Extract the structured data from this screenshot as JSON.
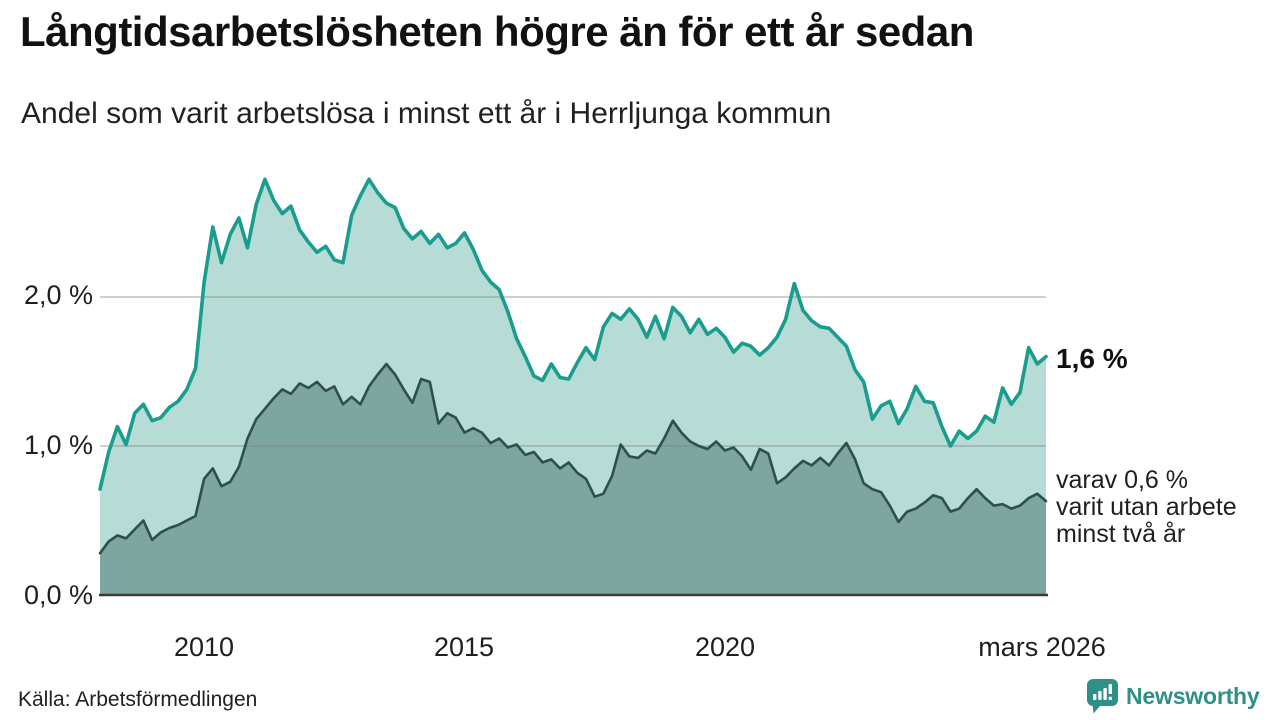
{
  "header": {
    "title": "Långtidsarbetslösheten högre än för ett år sedan",
    "subtitle": "Andel som varit arbetslösa i minst ett år i Herrljunga kommun"
  },
  "chart_data": {
    "type": "area",
    "title": "Långtidsarbetslösheten högre än för ett år sedan",
    "subtitle": "Andel som varit arbetslösa i minst ett år i Herrljunga kommun",
    "unit": "%",
    "x_start": 2008.0,
    "x_end": 2026.17,
    "ylim": [
      0,
      2.85
    ],
    "grid": "horizontal",
    "grid_color": "#828282",
    "axis_color": "#3a3a3a",
    "y_ticks": [
      {
        "label": "0,0 %",
        "value": 0
      },
      {
        "label": "1,0 %",
        "value": 1
      },
      {
        "label": "2,0 %",
        "value": 2
      }
    ],
    "x_ticks": [
      {
        "label": "2010",
        "value": 2010
      },
      {
        "label": "2015",
        "value": 2015
      },
      {
        "label": "2020",
        "value": 2020
      },
      {
        "label": "mars 2026",
        "value": 2026.17
      }
    ],
    "series": [
      {
        "name": "Arbetslösa minst ett år",
        "line_color": "#1a9c8e",
        "fill_color": "#b7dcd6",
        "end_value_pct": 1.6,
        "values": [
          0.71,
          0.96,
          1.13,
          1.01,
          1.22,
          1.28,
          1.17,
          1.19,
          1.26,
          1.3,
          1.38,
          1.52,
          2.1,
          2.47,
          2.23,
          2.42,
          2.53,
          2.33,
          2.62,
          2.79,
          2.65,
          2.56,
          2.61,
          2.45,
          2.37,
          2.3,
          2.34,
          2.25,
          2.23,
          2.55,
          2.68,
          2.79,
          2.7,
          2.63,
          2.6,
          2.46,
          2.39,
          2.44,
          2.36,
          2.42,
          2.33,
          2.36,
          2.43,
          2.32,
          2.18,
          2.1,
          2.05,
          1.9,
          1.72,
          1.6,
          1.47,
          1.44,
          1.55,
          1.46,
          1.45,
          1.56,
          1.66,
          1.58,
          1.8,
          1.89,
          1.85,
          1.92,
          1.85,
          1.73,
          1.87,
          1.72,
          1.93,
          1.87,
          1.76,
          1.85,
          1.75,
          1.79,
          1.73,
          1.63,
          1.69,
          1.67,
          1.61,
          1.66,
          1.73,
          1.85,
          2.09,
          1.91,
          1.84,
          1.8,
          1.79,
          1.73,
          1.67,
          1.51,
          1.43,
          1.18,
          1.27,
          1.3,
          1.15,
          1.25,
          1.4,
          1.3,
          1.29,
          1.13,
          1.0,
          1.1,
          1.05,
          1.1,
          1.2,
          1.16,
          1.39,
          1.28,
          1.36,
          1.66,
          1.55,
          1.6
        ]
      },
      {
        "name": "Utan arbete minst två år",
        "line_color": "#2e4f4b",
        "fill_color": "#7ca69f",
        "end_value_pct": 0.6,
        "values": [
          0.28,
          0.36,
          0.4,
          0.38,
          0.44,
          0.5,
          0.37,
          0.42,
          0.45,
          0.47,
          0.5,
          0.53,
          0.78,
          0.85,
          0.73,
          0.76,
          0.86,
          1.05,
          1.18,
          1.25,
          1.32,
          1.38,
          1.35,
          1.42,
          1.39,
          1.43,
          1.37,
          1.4,
          1.28,
          1.33,
          1.28,
          1.4,
          1.48,
          1.55,
          1.48,
          1.38,
          1.29,
          1.45,
          1.43,
          1.15,
          1.22,
          1.19,
          1.09,
          1.12,
          1.09,
          1.02,
          1.05,
          0.99,
          1.01,
          0.94,
          0.96,
          0.89,
          0.91,
          0.85,
          0.89,
          0.82,
          0.78,
          0.66,
          0.68,
          0.8,
          1.01,
          0.93,
          0.92,
          0.97,
          0.95,
          1.05,
          1.17,
          1.09,
          1.03,
          1.0,
          0.98,
          1.03,
          0.97,
          0.99,
          0.93,
          0.84,
          0.98,
          0.95,
          0.75,
          0.79,
          0.85,
          0.9,
          0.87,
          0.92,
          0.87,
          0.95,
          1.02,
          0.91,
          0.75,
          0.71,
          0.69,
          0.6,
          0.49,
          0.56,
          0.58,
          0.62,
          0.67,
          0.65,
          0.56,
          0.58,
          0.65,
          0.71,
          0.65,
          0.6,
          0.61,
          0.58,
          0.6,
          0.65,
          0.68,
          0.63
        ]
      }
    ],
    "annotations": {
      "total_end_label": "1,6 %",
      "secondary_label_lines": [
        "varav 0,6 %",
        "varit utan arbete",
        "minst två år"
      ]
    }
  },
  "source": {
    "label": "Källa: Arbetsförmedlingen"
  },
  "branding": {
    "name": "Newsworthy",
    "color": "#2f9087",
    "icon": "newsworthy-chart-bubble-icon"
  }
}
